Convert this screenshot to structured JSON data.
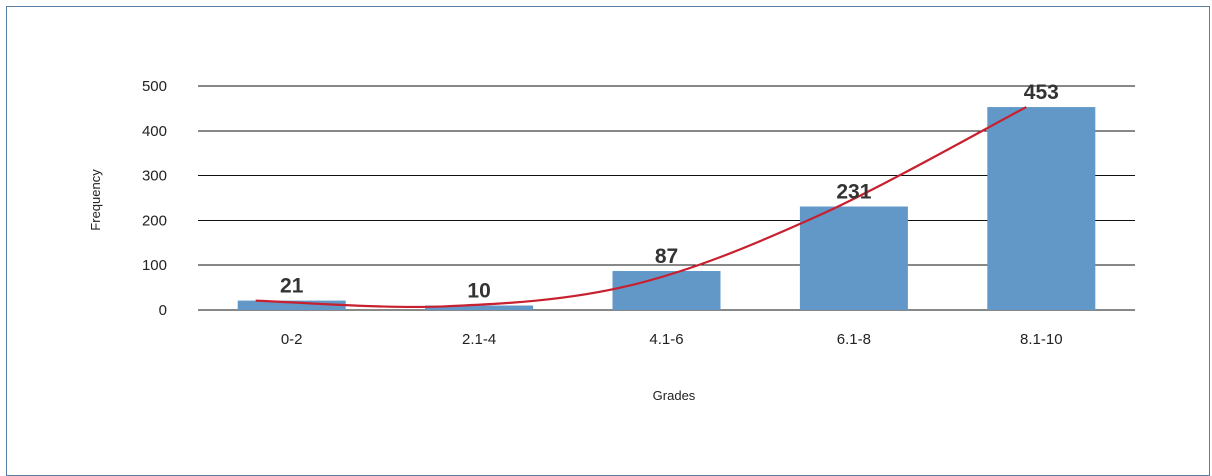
{
  "chart_data": {
    "type": "bar",
    "title": "",
    "xlabel": "Grades",
    "ylabel": "Frequency",
    "categories": [
      "0-2",
      "2.1-4",
      "4.1-6",
      "6.1-8",
      "8.1-10"
    ],
    "values": [
      21,
      10,
      87,
      231,
      453
    ],
    "data_labels": [
      "21",
      "10",
      "87",
      "231",
      "453"
    ],
    "ylim": [
      0,
      500
    ],
    "yticks": [
      0,
      100,
      200,
      300,
      400,
      500
    ],
    "grid": true,
    "legend": "none",
    "trendline": {
      "type": "smooth-line",
      "values": [
        21,
        8,
        55,
        210,
        453
      ]
    },
    "colors": {
      "bar": "#6198c8",
      "trendline": "#c8202f",
      "gridline": "#111111",
      "frame": "#5b7fa6"
    }
  }
}
